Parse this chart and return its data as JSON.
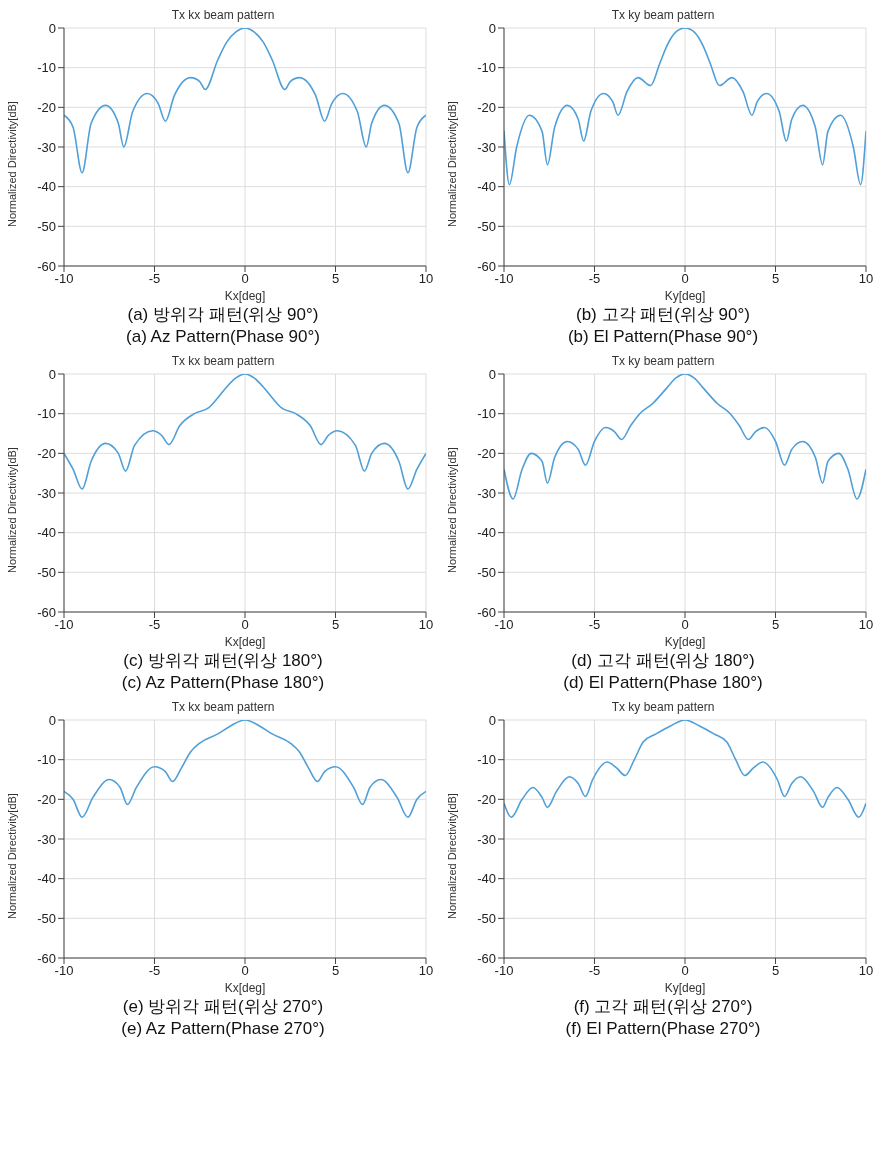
{
  "chart_data": [
    {
      "type": "line",
      "title": "Tx kx beam pattern",
      "xlabel": "Kx[deg]",
      "ylabel": "Normalized Directivity[dB]",
      "color": "#4f9fd8",
      "grid": true,
      "xlim": [
        -10,
        10
      ],
      "xticks": [
        -10,
        -5,
        0,
        5,
        10
      ],
      "ylim": [
        -60,
        0
      ],
      "yticks": [
        -60,
        -50,
        -40,
        -30,
        -20,
        -10,
        0
      ],
      "annotations": [
        "(a) 방위각 패턴(위상 90°)",
        "(a) Az Pattern(Phase 90°)"
      ],
      "x": [
        -10,
        -9.5,
        -9,
        -8.5,
        -7.7,
        -7,
        -6.7,
        -6.2,
        -5.4,
        -4.8,
        -4.4,
        -3.9,
        -3,
        -2.5,
        -2.2,
        -1.5,
        -1,
        -0.5,
        0,
        0.5,
        1,
        1.5,
        2.2,
        2.5,
        3,
        3.9,
        4.4,
        4.8,
        5.4,
        6.2,
        6.7,
        7,
        7.7,
        8.5,
        9,
        9.5,
        10
      ],
      "values": [
        -22,
        -25,
        -36.5,
        -24,
        -19.5,
        -24,
        -30,
        -21,
        -16.5,
        -19,
        -23.5,
        -17,
        -12.5,
        -13.5,
        -15.5,
        -8,
        -3.5,
        -1,
        0,
        -1,
        -3.5,
        -8,
        -15.5,
        -13.5,
        -12.5,
        -17,
        -23.5,
        -19,
        -16.5,
        -21,
        -30,
        -24,
        -19.5,
        -24,
        -36.5,
        -25,
        -22
      ]
    },
    {
      "type": "line",
      "title": "Tx ky beam pattern",
      "xlabel": "Ky[deg]",
      "ylabel": "Normalized Directivity[dB]",
      "color": "#4f9fd8",
      "grid": true,
      "xlim": [
        -10,
        10
      ],
      "xticks": [
        -10,
        -5,
        0,
        5,
        10
      ],
      "ylim": [
        -60,
        0
      ],
      "yticks": [
        -60,
        -50,
        -40,
        -30,
        -20,
        -10,
        0
      ],
      "annotations": [
        "(b) 고각 패턴(위상 90°)",
        "(b) El Pattern(Phase 90°)"
      ],
      "x": [
        -10,
        -9.7,
        -9.3,
        -8.6,
        -7.9,
        -7.6,
        -7.2,
        -6.5,
        -5.9,
        -5.6,
        -5.2,
        -4.5,
        -4,
        -3.7,
        -3.2,
        -2.6,
        -1.9,
        -1.4,
        -1,
        -0.5,
        0,
        0.5,
        1,
        1.4,
        1.9,
        2.6,
        3.2,
        3.7,
        4,
        4.5,
        5.2,
        5.6,
        5.9,
        6.5,
        7.2,
        7.6,
        7.9,
        8.6,
        9.3,
        9.7,
        10
      ],
      "values": [
        -26,
        -39.5,
        -30,
        -22,
        -26,
        -34.5,
        -25,
        -19.5,
        -23,
        -28.5,
        -21,
        -16.5,
        -18.5,
        -22,
        -16,
        -12.5,
        -14.5,
        -9,
        -4.5,
        -1,
        0,
        -1,
        -4.5,
        -9,
        -14.5,
        -12.5,
        -16,
        -22,
        -18.5,
        -16.5,
        -21,
        -28.5,
        -23,
        -19.5,
        -25,
        -34.5,
        -26,
        -22,
        -30,
        -39.5,
        -26
      ]
    },
    {
      "type": "line",
      "title": "Tx kx beam pattern",
      "xlabel": "Kx[deg]",
      "ylabel": "Normalized Directivity[dB]",
      "color": "#4f9fd8",
      "grid": true,
      "xlim": [
        -10,
        10
      ],
      "xticks": [
        -10,
        -5,
        0,
        5,
        10
      ],
      "ylim": [
        -60,
        0
      ],
      "yticks": [
        -60,
        -50,
        -40,
        -30,
        -20,
        -10,
        0
      ],
      "annotations": [
        "(c) 방위각 패턴(위상 180°)",
        "(c) Az Pattern(Phase 180°)"
      ],
      "x": [
        -10,
        -9.5,
        -9,
        -8.5,
        -7.7,
        -7,
        -6.6,
        -6.1,
        -5.1,
        -4.6,
        -4.2,
        -3.6,
        -2.8,
        -2,
        -1.5,
        -1,
        -0.5,
        0,
        0.5,
        1,
        1.5,
        2,
        2.8,
        3.6,
        4.2,
        4.6,
        5.1,
        6.1,
        6.6,
        7,
        7.7,
        8.5,
        9,
        9.5,
        10
      ],
      "values": [
        -20,
        -24,
        -29,
        -22,
        -17.5,
        -20,
        -24.5,
        -18,
        -14.3,
        -15.5,
        -17.8,
        -13,
        -10,
        -8.5,
        -6,
        -3.2,
        -1,
        0,
        -1,
        -3.2,
        -6,
        -8.5,
        -10,
        -13,
        -17.8,
        -15.5,
        -14.3,
        -18,
        -24.5,
        -20,
        -17.5,
        -22,
        -29,
        -24,
        -20
      ]
    },
    {
      "type": "line",
      "title": "Tx ky beam pattern",
      "xlabel": "Ky[deg]",
      "ylabel": "Normalized Directivity[dB]",
      "color": "#4f9fd8",
      "grid": true,
      "xlim": [
        -10,
        10
      ],
      "xticks": [
        -10,
        -5,
        0,
        5,
        10
      ],
      "ylim": [
        -60,
        0
      ],
      "yticks": [
        -60,
        -50,
        -40,
        -30,
        -20,
        -10,
        0
      ],
      "annotations": [
        "(d) 고각 패턴(위상 180°)",
        "(d) El Pattern(Phase 180°)"
      ],
      "x": [
        -10,
        -9.5,
        -9,
        -8.5,
        -7.9,
        -7.6,
        -7.2,
        -6.5,
        -5.9,
        -5.5,
        -5,
        -4.4,
        -3.9,
        -3.5,
        -3,
        -2.5,
        -1.8,
        -1,
        -0.5,
        0,
        0.5,
        1,
        1.8,
        2.5,
        3,
        3.5,
        3.9,
        4.4,
        5,
        5.5,
        5.9,
        6.5,
        7.2,
        7.6,
        7.9,
        8.5,
        9,
        9.5,
        10
      ],
      "values": [
        -24,
        -31.5,
        -24,
        -20,
        -22,
        -27.5,
        -21,
        -17,
        -19,
        -23,
        -17,
        -13.5,
        -14.5,
        -16.5,
        -13,
        -10,
        -7.5,
        -3.5,
        -1,
        0,
        -1,
        -3.5,
        -7.5,
        -10,
        -13,
        -16.5,
        -14.5,
        -13.5,
        -17,
        -23,
        -19,
        -17,
        -21,
        -27.5,
        -22,
        -20,
        -24,
        -31.5,
        -24
      ]
    },
    {
      "type": "line",
      "title": "Tx kx beam pattern",
      "xlabel": "Kx[deg]",
      "ylabel": "Normalized Directivity[dB]",
      "color": "#4f9fd8",
      "grid": true,
      "xlim": [
        -10,
        10
      ],
      "xticks": [
        -10,
        -5,
        0,
        5,
        10
      ],
      "ylim": [
        -60,
        0
      ],
      "yticks": [
        -60,
        -50,
        -40,
        -30,
        -20,
        -10,
        0
      ],
      "annotations": [
        "(e) 방위각 패턴(위상 270°)",
        "(e) Az Pattern(Phase 270°)"
      ],
      "x": [
        -10,
        -9.5,
        -9,
        -8.4,
        -7.5,
        -6.9,
        -6.5,
        -6,
        -5,
        -4.4,
        -4,
        -3.5,
        -3,
        -2.5,
        -1.5,
        -0.8,
        0,
        0.8,
        1.5,
        2.5,
        3,
        3.5,
        4,
        4.4,
        5,
        6,
        6.5,
        6.9,
        7.5,
        8.4,
        9,
        9.5,
        10
      ],
      "values": [
        -18,
        -20,
        -24.5,
        -19.5,
        -15,
        -17,
        -21.3,
        -17,
        -11.8,
        -13,
        -15.5,
        -12,
        -8,
        -5.8,
        -3.5,
        -1.5,
        0,
        -1.5,
        -3.5,
        -5.8,
        -8,
        -12,
        -15.5,
        -13,
        -11.8,
        -17,
        -21.3,
        -17,
        -15,
        -19.5,
        -24.5,
        -20,
        -18
      ]
    },
    {
      "type": "line",
      "title": "Tx ky beam pattern",
      "xlabel": "Ky[deg]",
      "ylabel": "Normalized Directivity[dB]",
      "color": "#4f9fd8",
      "grid": true,
      "xlim": [
        -10,
        10
      ],
      "xticks": [
        -10,
        -5,
        0,
        5,
        10
      ],
      "ylim": [
        -60,
        0
      ],
      "yticks": [
        -60,
        -50,
        -40,
        -30,
        -20,
        -10,
        0
      ],
      "annotations": [
        "(f) 고각 패턴(위상 270°)",
        "(f) El Pattern(Phase 270°)"
      ],
      "x": [
        -10,
        -9.6,
        -9,
        -8.4,
        -7.9,
        -7.6,
        -7.1,
        -6.4,
        -5.9,
        -5.5,
        -5.1,
        -4.3,
        -3.8,
        -3.3,
        -2.8,
        -2.3,
        -1.6,
        -0.8,
        0,
        0.8,
        1.6,
        2.3,
        2.8,
        3.3,
        3.8,
        4.3,
        5.1,
        5.5,
        5.9,
        6.4,
        7.1,
        7.6,
        7.9,
        8.4,
        9,
        9.6,
        10
      ],
      "values": [
        -21,
        -24.5,
        -20,
        -17,
        -19.5,
        -22,
        -18,
        -14.3,
        -16,
        -19.3,
        -15,
        -10.6,
        -12,
        -14,
        -10,
        -5.5,
        -3.5,
        -1.5,
        0,
        -1.5,
        -3.5,
        -5.5,
        -10,
        -14,
        -12,
        -10.6,
        -15,
        -19.3,
        -16,
        -14.3,
        -18,
        -22,
        -19.5,
        -17,
        -20,
        -24.5,
        -21
      ]
    }
  ]
}
